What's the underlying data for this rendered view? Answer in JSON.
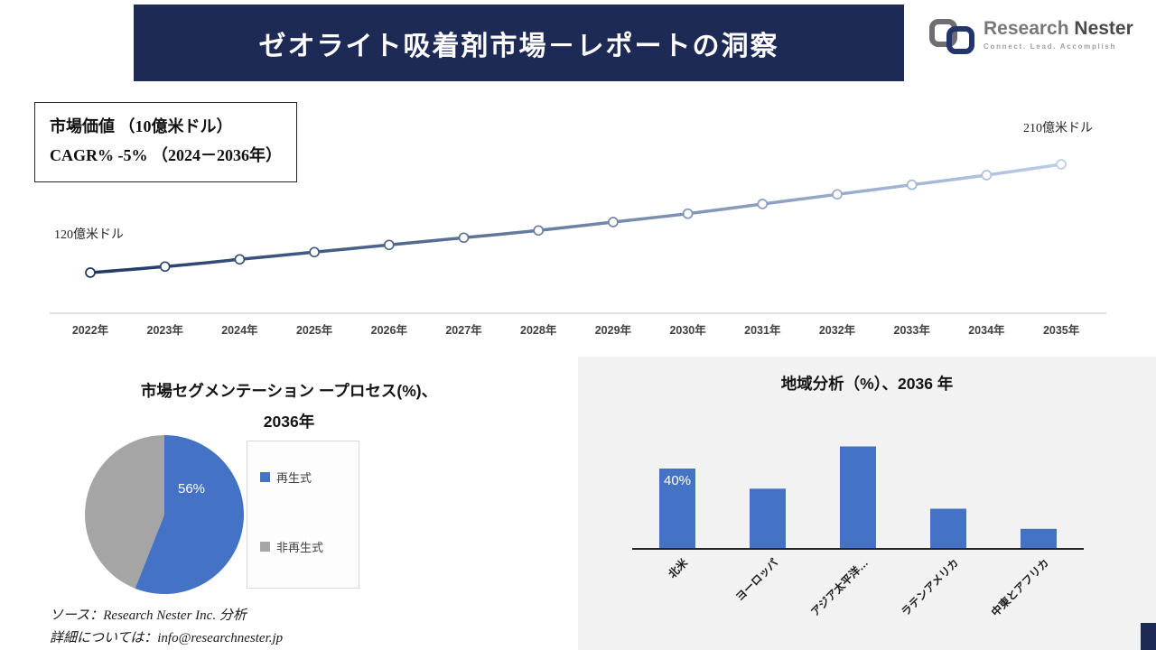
{
  "header": {
    "title": "ゼオライト吸着剤市場－レポートの洞察",
    "logo": {
      "brand_research": "Research",
      "brand_nester": "Nester",
      "tagline": "Connect. Lead. Accomplish"
    }
  },
  "info_box": {
    "line1": "市場価値 （10億米ドル）",
    "line2": "CAGR% -5% （2024－2036年）"
  },
  "annotations": {
    "start_value": "120億米ドル",
    "end_value": "210億米ドル"
  },
  "segmentation": {
    "title_line1": "市場セグメンテーション ープロセス(%)、",
    "title_line2": "2036年",
    "data_label": "56%"
  },
  "region": {
    "title": "地域分析（%）、2036 年",
    "data_label": "40%"
  },
  "footer": {
    "source": "ソース：Research Nester Inc. 分析",
    "contact": "詳細については：info@researchnester.jp"
  },
  "colors": {
    "navy": "#1e2a56",
    "accent_blue": "#4472C4",
    "gray": "#A5A5A5",
    "line_start": "#1F3864",
    "line_end": "#BCCDE8"
  },
  "chart_data": [
    {
      "type": "line",
      "title": "市場価値 （10億米ドル）",
      "x": [
        "2022年",
        "2023年",
        "2024年",
        "2025年",
        "2026年",
        "2027年",
        "2028年",
        "2029年",
        "2030年",
        "2031年",
        "2032年",
        "2033年",
        "2034年",
        "2035年"
      ],
      "values": [
        120,
        125,
        131,
        137,
        143,
        149,
        155,
        162,
        169,
        177,
        185,
        193,
        201,
        210
      ],
      "ylim": [
        110,
        220
      ],
      "annotations": [
        "120億米ドル",
        "210億米ドル"
      ],
      "grid": false,
      "legend_position": "none"
    },
    {
      "type": "pie",
      "title": "市場セグメンテーション ープロセス(%)、2036年",
      "labels": [
        "再生式",
        "非再生式"
      ],
      "values": [
        56,
        44
      ],
      "colors": [
        "#4472C4",
        "#A5A5A5"
      ],
      "data_labels": [
        "56%"
      ],
      "legend_position": "right"
    },
    {
      "type": "bar",
      "title": "地域分析（%）、2036 年",
      "categories": [
        "北米",
        "ヨーロッパ",
        "アジア太平洋…",
        "ラテンアメリカ",
        "中東とアフリカ"
      ],
      "values": [
        40,
        30,
        51,
        20,
        10
      ],
      "data_labels": [
        "40%"
      ],
      "color": "#4472C4",
      "ylim": [
        0,
        55
      ],
      "grid": false
    }
  ]
}
